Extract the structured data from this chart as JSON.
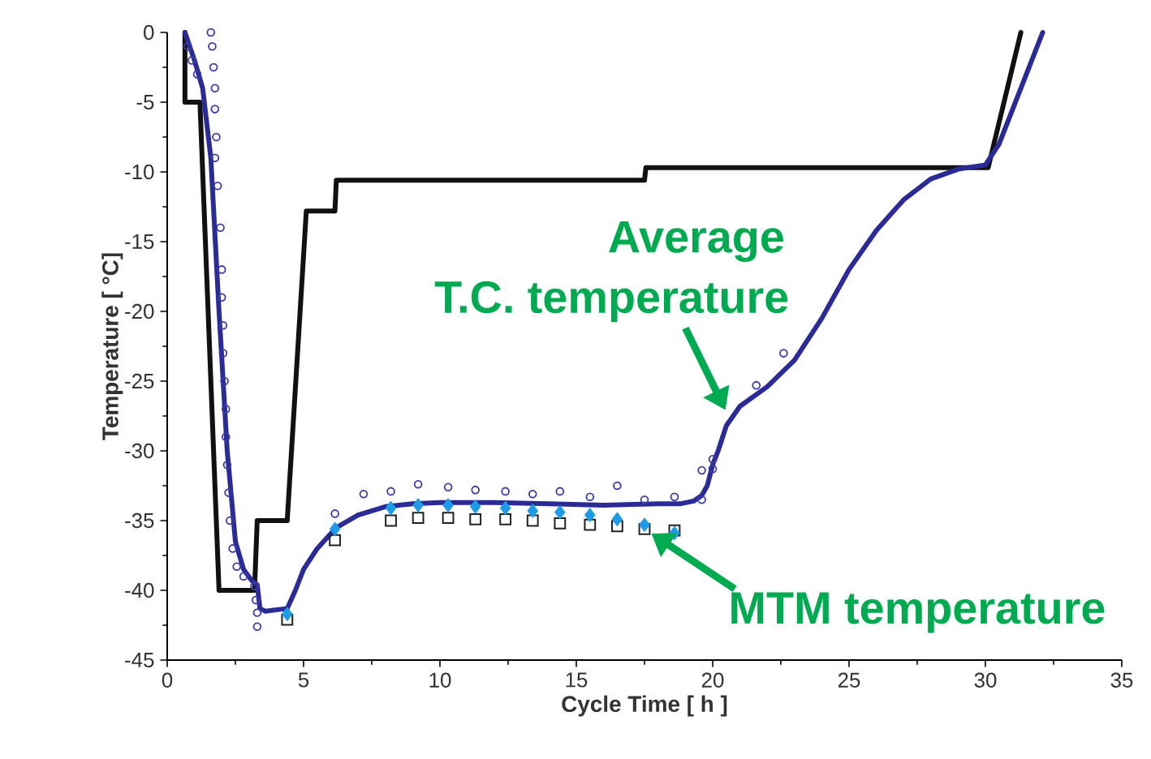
{
  "chart_data": {
    "type": "line",
    "xlabel": "Cycle Time [ h ]",
    "ylabel": "Temperature [ °C]",
    "xlim": [
      0,
      35
    ],
    "xticks": [
      0,
      5,
      10,
      15,
      20,
      25,
      30,
      35
    ],
    "ylim": [
      -45,
      0
    ],
    "yticks": [
      -45,
      -40,
      -35,
      -30,
      -25,
      -20,
      -15,
      -10,
      -5,
      0
    ],
    "series": [
      {
        "type": "line",
        "color": "#111111",
        "marker": "none",
        "x": [
          0.65,
          0.65,
          1.2,
          1.9,
          3.2,
          3.3,
          4.4,
          5.1,
          6.15,
          6.2,
          17.5,
          17.55,
          30.1,
          31.3
        ],
        "values": [
          0,
          -5,
          -5,
          -40,
          -40,
          -35,
          -35,
          -12.8,
          -12.8,
          -10.6,
          -10.6,
          -9.7,
          -9.7,
          0
        ]
      },
      {
        "type": "line",
        "color": "#2b2b98",
        "marker": "none",
        "x": [
          0.65,
          1.0,
          1.3,
          1.6,
          1.9,
          2.2,
          2.5,
          2.8,
          3.1,
          3.3,
          3.4,
          3.6,
          4.4,
          4.7,
          5.0,
          5.5,
          6.2,
          7.0,
          8.0,
          9.0,
          10.0,
          12.0,
          14.0,
          16.0,
          18.0,
          18.8,
          19.3,
          19.6,
          19.8,
          20.0,
          20.2,
          20.5,
          21.0,
          22.0,
          23.0,
          24.0,
          25.0,
          26.0,
          27.0,
          28.0,
          29.0,
          30.0,
          30.5,
          31.0,
          31.5,
          32.1
        ],
        "values": [
          0,
          -2,
          -4,
          -9,
          -20,
          -30,
          -36.5,
          -38.5,
          -39.3,
          -39.6,
          -41.3,
          -41.5,
          -41.3,
          -40,
          -38.5,
          -37,
          -35.5,
          -34.6,
          -34,
          -33.8,
          -33.7,
          -33.7,
          -33.8,
          -33.9,
          -33.8,
          -33.8,
          -33.6,
          -33.2,
          -32.5,
          -31,
          -30,
          -28.2,
          -26.8,
          -25.4,
          -23.5,
          -20.5,
          -17,
          -14.2,
          -12,
          -10.5,
          -9.8,
          -9.5,
          -8,
          -5.5,
          -3,
          0
        ]
      },
      {
        "type": "scatter",
        "color": "#3a3aa8",
        "marker": "circle",
        "x": [
          0.75,
          0.9,
          1.1,
          1.6,
          1.65,
          1.7,
          1.75,
          1.75,
          1.8,
          1.75,
          1.85,
          1.95,
          2.0,
          2.0,
          2.05,
          2.05,
          2.1,
          2.15,
          2.15,
          2.2,
          2.25,
          2.3,
          2.4,
          2.55,
          2.8,
          3.2,
          3.25,
          3.3,
          3.3,
          6.15,
          7.2,
          8.2,
          9.2,
          10.3,
          11.3,
          12.4,
          13.4,
          14.4,
          15.5,
          16.5,
          17.5,
          18.6,
          19.6,
          19.6,
          20.0,
          20.0,
          21.6,
          22.6
        ],
        "values": [
          -1,
          -2,
          -3,
          0,
          -1,
          -2.5,
          -4,
          -5.5,
          -7.5,
          -9,
          -11,
          -14,
          -17,
          -19,
          -21,
          -23,
          -25,
          -27,
          -29,
          -31,
          -33,
          -35,
          -37,
          -38.3,
          -39,
          -39.7,
          -40.7,
          -41.6,
          -42.6,
          -34.5,
          -33.1,
          -32.9,
          -32.4,
          -32.6,
          -32.8,
          -32.9,
          -33.1,
          -32.9,
          -33.3,
          -32.5,
          -33.5,
          -33.3,
          -33.5,
          -31.4,
          -31.3,
          -30.6,
          -25.3,
          -23
        ]
      },
      {
        "type": "scatter",
        "color": "#222222",
        "marker": "square",
        "x": [
          4.4,
          6.15,
          8.2,
          9.2,
          10.3,
          11.3,
          12.4,
          13.4,
          14.4,
          15.5,
          16.5,
          17.5,
          18.6
        ],
        "values": [
          -42.1,
          -36.4,
          -35,
          -34.8,
          -34.8,
          -34.9,
          -34.9,
          -35,
          -35.2,
          -35.3,
          -35.4,
          -35.6,
          -35.7
        ]
      },
      {
        "type": "scatter",
        "color": "#1e9be6",
        "marker": "diamond",
        "x": [
          4.4,
          6.15,
          8.2,
          9.2,
          10.3,
          11.3,
          12.4,
          13.4,
          14.4,
          15.5,
          16.5,
          17.5,
          18.6
        ],
        "values": [
          -41.7,
          -35.6,
          -34.1,
          -33.9,
          -33.9,
          -34,
          -34.1,
          -34.3,
          -34.4,
          -34.6,
          -34.9,
          -35.3,
          -35.9
        ]
      }
    ],
    "annotations": [
      "Average",
      {
        "text": "T.C. temperature",
        "x": 20.6,
        "y": -27.6
      },
      {
        "text": "MTM temperature",
        "x": 17.5,
        "y": -35.6
      }
    ]
  }
}
